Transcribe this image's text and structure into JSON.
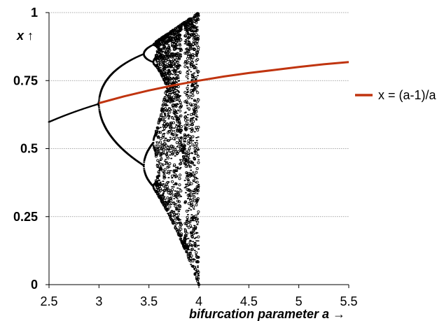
{
  "chart_data": {
    "type": "scatter",
    "title": "",
    "xlabel": "bifurcation parameter a →",
    "ylabel": "x ↑",
    "xlim": [
      2.5,
      5.5
    ],
    "ylim": [
      0,
      1
    ],
    "x_ticks": [
      "2.5",
      "3",
      "3.5",
      "4",
      "4.5",
      "5",
      "5.5"
    ],
    "y_ticks": [
      "0",
      "0.25",
      "0.5",
      "0.75",
      "1"
    ],
    "grid": "horizontal dotted",
    "legend_position": "right",
    "series": [
      {
        "kind": "scatter",
        "color": "#000000",
        "description_source": "logistic map x(n+1) = a·x(n)·(1 − x(n)), attractor points for a in [2.5, 4]",
        "a_range": [
          2.5,
          4.0
        ]
      },
      {
        "kind": "line",
        "name": "x = (a-1)/a",
        "color": "#c0340f",
        "x": [
          3.0,
          3.25,
          3.5,
          3.75,
          4.0,
          4.25,
          4.5,
          4.75,
          5.0,
          5.25,
          5.5
        ],
        "y": [
          0.667,
          0.692,
          0.714,
          0.733,
          0.75,
          0.765,
          0.778,
          0.789,
          0.8,
          0.81,
          0.818
        ]
      }
    ]
  }
}
